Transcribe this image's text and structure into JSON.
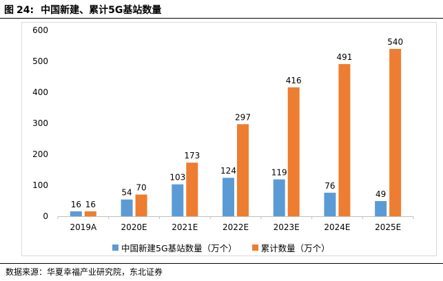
{
  "figure": {
    "label": "图",
    "number": "24:",
    "title": "中国新建、累计5G基站数量"
  },
  "source": "数据来源：华夏幸福产业研究院，东北证券",
  "colors": {
    "series_new": "#5b9bd5",
    "series_cumulative": "#ed7d31",
    "gridline": "#d9d9d9",
    "axis": "#bfbfbf"
  },
  "chart_data": {
    "type": "bar",
    "title": "",
    "xlabel": "",
    "ylabel": "",
    "categories": [
      "2019A",
      "2020E",
      "2021E",
      "2022E",
      "2023E",
      "2024E",
      "2025E"
    ],
    "series": [
      {
        "name": "中国新建5G基站数量（万个）",
        "values": [
          16,
          54,
          103,
          124,
          119,
          76,
          49
        ]
      },
      {
        "name": "累计数量（万个）",
        "values": [
          16,
          70,
          173,
          297,
          416,
          491,
          540
        ]
      }
    ],
    "ylim": [
      0,
      600
    ],
    "yticks": [
      0,
      100,
      200,
      300,
      400,
      500,
      600
    ],
    "grid": false,
    "data_labels": true,
    "legend_position": "bottom"
  }
}
